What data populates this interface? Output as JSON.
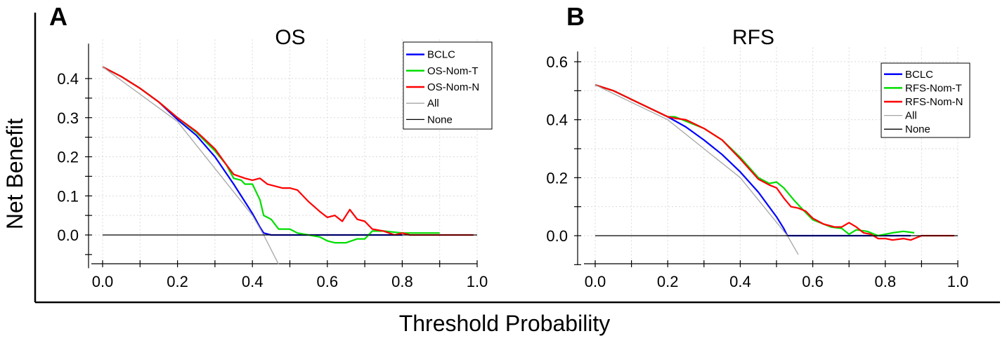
{
  "figure": {
    "xlabel": "Threshold Probability",
    "ylabel": "Net Benefit"
  },
  "colors": {
    "BCLC": "#0000ff",
    "Nom-T": "#00dd00",
    "Nom-N": "#ff0000",
    "All": "#a6a6a6",
    "None": "#000000"
  },
  "chart_data": [
    {
      "type": "line",
      "panel_letter": "A",
      "title": "OS",
      "xlabel": "Threshold Probability",
      "ylabel": "Net Benefit",
      "xlim": [
        0,
        1
      ],
      "ylim": [
        -0.085,
        0.5
      ],
      "xticks": [
        0,
        0.2,
        0.4,
        0.6,
        0.8,
        1
      ],
      "xtick_labels": [
        "0.0",
        "0.2",
        "0.4",
        "0.6",
        "0.8",
        "1.0"
      ],
      "yticks": [
        0,
        0.1,
        0.2,
        0.3,
        0.4
      ],
      "ytick_labels": [
        "0.0",
        "0.1",
        "0.2",
        "0.3",
        "0.4"
      ],
      "grid": true,
      "legend_position": "top-right",
      "series": [
        {
          "name": "BCLC",
          "color_key": "BCLC",
          "x": [
            0,
            0.05,
            0.1,
            0.15,
            0.2,
            0.25,
            0.3,
            0.35,
            0.4,
            0.42,
            0.43,
            0.45,
            0.5,
            0.6,
            0.7,
            0.8
          ],
          "y": [
            0.43,
            0.405,
            0.375,
            0.34,
            0.295,
            0.255,
            0.2,
            0.13,
            0.055,
            0.02,
            0.005,
            0.0,
            0.0,
            0.0,
            0.0,
            0.0
          ]
        },
        {
          "name": "OS-Nom-T",
          "color_key": "Nom-T",
          "x": [
            0,
            0.05,
            0.1,
            0.15,
            0.2,
            0.25,
            0.3,
            0.33,
            0.35,
            0.37,
            0.38,
            0.4,
            0.42,
            0.43,
            0.45,
            0.47,
            0.5,
            0.52,
            0.55,
            0.58,
            0.6,
            0.62,
            0.65,
            0.68,
            0.7,
            0.72,
            0.75,
            0.8,
            0.85,
            0.9
          ],
          "y": [
            0.43,
            0.405,
            0.375,
            0.34,
            0.3,
            0.262,
            0.215,
            0.18,
            0.145,
            0.14,
            0.13,
            0.13,
            0.09,
            0.05,
            0.04,
            0.015,
            0.015,
            0.005,
            0.0,
            -0.005,
            -0.015,
            -0.02,
            -0.02,
            -0.01,
            -0.01,
            0.01,
            0.01,
            0.005,
            0.005,
            0.005
          ]
        },
        {
          "name": "OS-Nom-N",
          "color_key": "Nom-N",
          "x": [
            0,
            0.05,
            0.1,
            0.15,
            0.2,
            0.25,
            0.3,
            0.33,
            0.35,
            0.38,
            0.4,
            0.42,
            0.44,
            0.46,
            0.48,
            0.5,
            0.52,
            0.55,
            0.58,
            0.6,
            0.62,
            0.64,
            0.66,
            0.68,
            0.7,
            0.72,
            0.75,
            0.78,
            0.8,
            0.82,
            0.85,
            0.9,
            0.95,
            0.99
          ],
          "y": [
            0.43,
            0.405,
            0.375,
            0.34,
            0.3,
            0.265,
            0.22,
            0.18,
            0.155,
            0.145,
            0.14,
            0.145,
            0.13,
            0.125,
            0.12,
            0.12,
            0.115,
            0.085,
            0.06,
            0.045,
            0.05,
            0.035,
            0.065,
            0.04,
            0.035,
            0.015,
            0.01,
            0.0,
            0.005,
            0.0,
            0.0,
            0.0,
            0.0,
            0.0
          ]
        },
        {
          "name": "All",
          "color_key": "All",
          "x": [
            0,
            0.2,
            0.4,
            0.43,
            0.47
          ],
          "y": [
            0.43,
            0.29,
            0.05,
            0.0,
            -0.075
          ]
        },
        {
          "name": "None",
          "color_key": "None",
          "x": [
            0,
            1
          ],
          "y": [
            0,
            0
          ]
        }
      ]
    },
    {
      "type": "line",
      "panel_letter": "B",
      "title": "RFS",
      "xlabel": "Threshold Probability",
      "ylabel": "Net Benefit",
      "xlim": [
        0,
        1
      ],
      "ylim": [
        -0.1,
        0.65
      ],
      "xticks": [
        0,
        0.2,
        0.4,
        0.6,
        0.8,
        1
      ],
      "xtick_labels": [
        "0.0",
        "0.2",
        "0.4",
        "0.6",
        "0.8",
        "1.0"
      ],
      "yticks": [
        0,
        0.2,
        0.4,
        0.6
      ],
      "ytick_labels": [
        "0.0",
        "0.2",
        "0.4",
        "0.6"
      ],
      "grid": true,
      "legend_position": "top-right",
      "series": [
        {
          "name": "BCLC",
          "color_key": "BCLC",
          "x": [
            0,
            0.05,
            0.1,
            0.15,
            0.2,
            0.25,
            0.3,
            0.35,
            0.4,
            0.45,
            0.5,
            0.52,
            0.53,
            0.6,
            0.7,
            0.8,
            0.87
          ],
          "y": [
            0.52,
            0.5,
            0.47,
            0.44,
            0.41,
            0.375,
            0.33,
            0.28,
            0.22,
            0.15,
            0.065,
            0.025,
            0.0,
            0.0,
            0.0,
            0.0,
            0.0
          ]
        },
        {
          "name": "RFS-Nom-T",
          "color_key": "Nom-T",
          "x": [
            0,
            0.05,
            0.1,
            0.15,
            0.2,
            0.22,
            0.25,
            0.3,
            0.35,
            0.4,
            0.45,
            0.48,
            0.5,
            0.52,
            0.55,
            0.58,
            0.6,
            0.63,
            0.65,
            0.68,
            0.7,
            0.72,
            0.75,
            0.78,
            0.8,
            0.82,
            0.85,
            0.88
          ],
          "y": [
            0.52,
            0.5,
            0.47,
            0.44,
            0.41,
            0.41,
            0.395,
            0.37,
            0.33,
            0.27,
            0.2,
            0.18,
            0.185,
            0.165,
            0.12,
            0.08,
            0.055,
            0.04,
            0.03,
            0.025,
            0.005,
            0.02,
            0.015,
            0.0,
            0.005,
            0.01,
            0.015,
            0.01
          ]
        },
        {
          "name": "RFS-Nom-N",
          "color_key": "Nom-N",
          "x": [
            0,
            0.05,
            0.1,
            0.15,
            0.2,
            0.22,
            0.25,
            0.3,
            0.35,
            0.4,
            0.45,
            0.48,
            0.5,
            0.52,
            0.54,
            0.56,
            0.58,
            0.6,
            0.63,
            0.66,
            0.68,
            0.7,
            0.72,
            0.74,
            0.76,
            0.78,
            0.8,
            0.82,
            0.85,
            0.87,
            0.9,
            0.95,
            0.99
          ],
          "y": [
            0.52,
            0.5,
            0.47,
            0.44,
            0.41,
            0.405,
            0.4,
            0.37,
            0.33,
            0.265,
            0.195,
            0.175,
            0.165,
            0.13,
            0.1,
            0.095,
            0.085,
            0.06,
            0.04,
            0.03,
            0.03,
            0.045,
            0.03,
            0.01,
            0.005,
            -0.01,
            -0.01,
            -0.015,
            -0.01,
            -0.015,
            0.0,
            0.0,
            0.0
          ]
        },
        {
          "name": "All",
          "color_key": "All",
          "x": [
            0,
            0.2,
            0.4,
            0.53,
            0.56
          ],
          "y": [
            0.52,
            0.4,
            0.2,
            0.0,
            -0.065
          ]
        },
        {
          "name": "None",
          "color_key": "None",
          "x": [
            0,
            1
          ],
          "y": [
            0,
            0
          ]
        }
      ]
    }
  ]
}
